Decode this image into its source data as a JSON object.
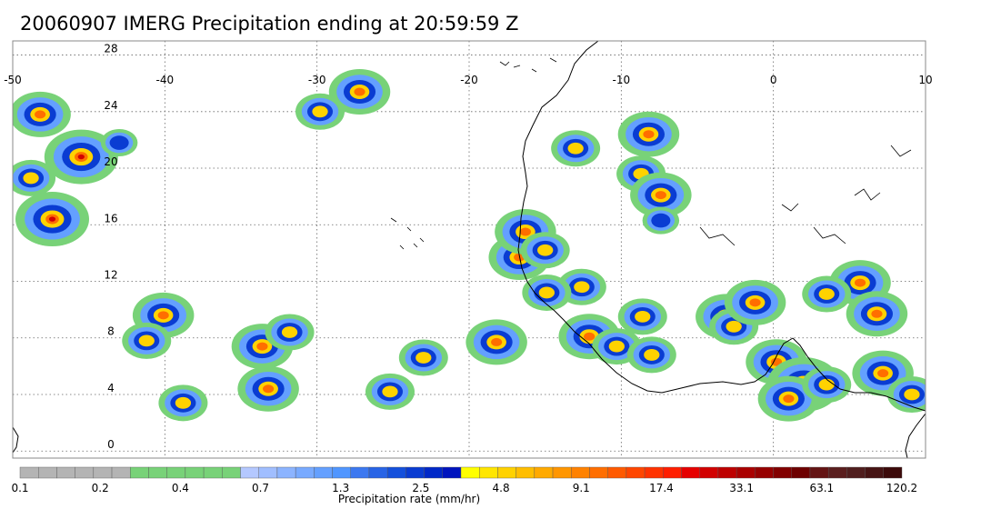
{
  "title": "20060907 IMERG Precipitation ending at 20:59:59 Z",
  "map": {
    "lon_range": [
      -50,
      10
    ],
    "lat_range": [
      -0.5,
      29
    ],
    "lon_ticks": [
      -50,
      -40,
      -30,
      -20,
      -10,
      0,
      10
    ],
    "lat_ticks": [
      0,
      4,
      8,
      12,
      16,
      20,
      24,
      28
    ],
    "lon_labels": [
      "-50",
      "-40",
      "-30",
      "-20",
      "-10",
      "0",
      "10"
    ],
    "lat_labels": [
      "0",
      "4",
      "8",
      "12",
      "16",
      "20",
      "24",
      "28"
    ],
    "gridlines": "dotted"
  },
  "colorbar": {
    "title": "Precipitation rate (mm/hr)",
    "tick_labels": [
      "0.1",
      "0.2",
      "0.4",
      "0.7",
      "1.3",
      "2.5",
      "4.8",
      "9.1",
      "17.4",
      "33.1",
      "63.1",
      "120.2"
    ],
    "colors": [
      "#b4b4b4",
      "#b4b4b4",
      "#b4b4b4",
      "#b4b4b4",
      "#b4b4b4",
      "#b4b4b4",
      "#78d278",
      "#78d278",
      "#78d278",
      "#78d278",
      "#78d278",
      "#78d278",
      "#b4c8ff",
      "#a0beff",
      "#8cb4ff",
      "#78aaff",
      "#64a0ff",
      "#5096ff",
      "#3c78f0",
      "#2864e6",
      "#1450dc",
      "#0a3cd2",
      "#0028c8",
      "#0014be",
      "#ffff00",
      "#ffe600",
      "#ffd200",
      "#ffbe00",
      "#ffaa00",
      "#ff9600",
      "#ff8200",
      "#ff6e00",
      "#ff5a00",
      "#ff4600",
      "#ff3200",
      "#ff1e00",
      "#e60000",
      "#d20000",
      "#be0000",
      "#aa0000",
      "#960000",
      "#820000",
      "#6e0000",
      "#641414",
      "#5a1e1e",
      "#501e1e",
      "#461414",
      "#3c0a0a"
    ]
  },
  "precip_cells": [
    {
      "lon": -48.2,
      "lat": 23.8,
      "intensity": 3
    },
    {
      "lon": -45.5,
      "lat": 20.8,
      "intensity": 4
    },
    {
      "lon": -48.8,
      "lat": 19.3,
      "intensity": 2
    },
    {
      "lon": -47.4,
      "lat": 16.4,
      "intensity": 4
    },
    {
      "lon": -43.0,
      "lat": 21.8,
      "intensity": 1
    },
    {
      "lon": -27.2,
      "lat": 25.4,
      "intensity": 3
    },
    {
      "lon": -29.8,
      "lat": 24.0,
      "intensity": 2
    },
    {
      "lon": -40.1,
      "lat": 9.6,
      "intensity": 3
    },
    {
      "lon": -41.2,
      "lat": 7.8,
      "intensity": 2
    },
    {
      "lon": -33.6,
      "lat": 7.4,
      "intensity": 3
    },
    {
      "lon": -31.8,
      "lat": 8.4,
      "intensity": 2
    },
    {
      "lon": -33.2,
      "lat": 4.4,
      "intensity": 3
    },
    {
      "lon": -38.8,
      "lat": 3.4,
      "intensity": 2
    },
    {
      "lon": -25.2,
      "lat": 4.2,
      "intensity": 2
    },
    {
      "lon": -23.0,
      "lat": 6.6,
      "intensity": 2
    },
    {
      "lon": -18.2,
      "lat": 7.7,
      "intensity": 3
    },
    {
      "lon": -16.7,
      "lat": 13.7,
      "intensity": 3
    },
    {
      "lon": -16.3,
      "lat": 15.5,
      "intensity": 3
    },
    {
      "lon": -15.0,
      "lat": 14.2,
      "intensity": 2
    },
    {
      "lon": -12.6,
      "lat": 11.6,
      "intensity": 2
    },
    {
      "lon": -14.9,
      "lat": 11.2,
      "intensity": 2
    },
    {
      "lon": -12.1,
      "lat": 8.1,
      "intensity": 3
    },
    {
      "lon": -10.3,
      "lat": 7.4,
      "intensity": 2
    },
    {
      "lon": -8.0,
      "lat": 6.8,
      "intensity": 2
    },
    {
      "lon": -8.6,
      "lat": 9.5,
      "intensity": 2
    },
    {
      "lon": -8.2,
      "lat": 22.4,
      "intensity": 3
    },
    {
      "lon": -13.0,
      "lat": 21.4,
      "intensity": 2
    },
    {
      "lon": -8.7,
      "lat": 19.6,
      "intensity": 2
    },
    {
      "lon": -7.4,
      "lat": 18.1,
      "intensity": 3
    },
    {
      "lon": -7.4,
      "lat": 16.3,
      "intensity": 1
    },
    {
      "lon": -3.1,
      "lat": 9.5,
      "intensity": 3
    },
    {
      "lon": -2.6,
      "lat": 8.8,
      "intensity": 2
    },
    {
      "lon": -1.2,
      "lat": 10.5,
      "intensity": 3
    },
    {
      "lon": 0.2,
      "lat": 6.3,
      "intensity": 3
    },
    {
      "lon": 2.0,
      "lat": 4.7,
      "intensity": 4
    },
    {
      "lon": 1.0,
      "lat": 3.7,
      "intensity": 3
    },
    {
      "lon": 3.5,
      "lat": 4.7,
      "intensity": 2
    },
    {
      "lon": 5.7,
      "lat": 11.9,
      "intensity": 3
    },
    {
      "lon": 6.8,
      "lat": 9.7,
      "intensity": 3
    },
    {
      "lon": 3.5,
      "lat": 11.1,
      "intensity": 2
    },
    {
      "lon": 7.2,
      "lat": 5.5,
      "intensity": 3
    },
    {
      "lon": 9.1,
      "lat": 4.0,
      "intensity": 2
    }
  ]
}
